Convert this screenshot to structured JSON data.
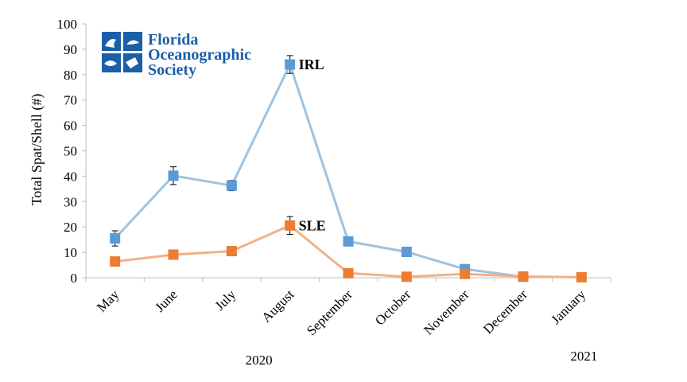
{
  "logo": {
    "lines": [
      "Florida",
      "Oceanographic",
      "Society"
    ],
    "color": "#1b5fa8"
  },
  "chart_data": {
    "type": "line",
    "title": "",
    "xlabel": "",
    "ylabel": "Total Spat/Shell (#)",
    "ylim": [
      0,
      100
    ],
    "yticks": [
      0,
      10,
      20,
      30,
      40,
      50,
      60,
      70,
      80,
      90,
      100
    ],
    "categories": [
      "May",
      "June",
      "July",
      "August",
      "September",
      "October",
      "November",
      "December",
      "January"
    ],
    "year_labels": [
      {
        "label": "2020",
        "category": "August"
      },
      {
        "label": "2021",
        "category": "January"
      }
    ],
    "series": [
      {
        "name": "IRL",
        "values": [
          15.5,
          40.2,
          36.3,
          84.0,
          14.3,
          10.2,
          3.4,
          0.4,
          null
        ],
        "errors": [
          3.0,
          3.5,
          2.0,
          3.5,
          1.5,
          0,
          0,
          0,
          null
        ],
        "line_color": "#9dc3e2",
        "marker_color": "#5b9bd5",
        "label_at": "August"
      },
      {
        "name": "SLE",
        "values": [
          6.4,
          9.1,
          10.5,
          20.6,
          1.8,
          0.4,
          1.5,
          0.5,
          0.2
        ],
        "errors": [
          0,
          0,
          0,
          3.5,
          0,
          0,
          0,
          0,
          0
        ],
        "line_color": "#f4b183",
        "marker_color": "#ed7d31",
        "label_at": "August"
      }
    ],
    "grid": false,
    "legend": "inline labels"
  }
}
